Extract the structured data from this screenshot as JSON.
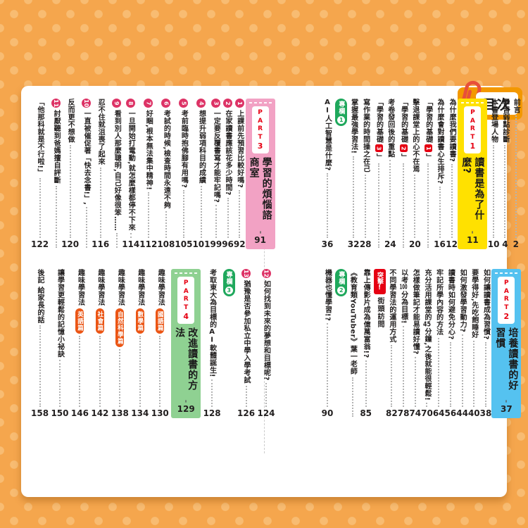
{
  "header": {
    "title": "目次"
  },
  "colors": {
    "background": "#f5a64d",
    "background_dots": "#f8bc72",
    "header_tab": "#f39800",
    "accent_red": "#e60012",
    "badge_green": "#1fa85c",
    "number_circle_pink": "#dd3366",
    "subject_tag_orange": "#eb5514",
    "part1": "#ffe100",
    "part2": "#55c2f0",
    "part3": "#f2a2c4",
    "part4": "#8fd192"
  },
  "sections": {
    "top_right": {
      "columns": [
        {
          "kind": "entry",
          "lines": [
            {
              "text": "前言"
            }
          ],
          "page": "2"
        },
        {
          "kind": "entry",
          "lines": [
            {
              "text": "學習弱點診斷"
            }
          ],
          "page": "4"
        },
        {
          "kind": "entry",
          "lines": [
            {
              "text": "本書登場人物"
            }
          ],
          "page": "10"
        },
        {
          "kind": "part",
          "label": "PART",
          "number": "1",
          "title": "讀書是為了什麼?",
          "page": "11",
          "color": "#ffe100"
        },
        {
          "kind": "entry",
          "lines": [
            {
              "text": "為什麼我們要讀書?"
            }
          ],
          "page": "12"
        },
        {
          "kind": "entry",
          "lines": [
            {
              "text": "為什麼會對讀書心生排斥?"
            }
          ],
          "page": "16"
        },
        {
          "kind": "entry",
          "lines": [
            {
              "bracket": {
                "label": "學習的基礎",
                "num": "1"
              }
            },
            {
              "text": "擊退課堂上的心不在焉"
            }
          ],
          "page": "20"
        },
        {
          "kind": "entry",
          "lines": [
            {
              "bracket": {
                "label": "學習的基礎",
                "num": "2"
              }
            },
            {
              "text": "考卷發回後的重點"
            }
          ],
          "page": "24"
        },
        {
          "kind": "entry",
          "lines": [
            {
              "bracket": {
                "label": "學習的基礎",
                "num": "3"
              }
            },
            {
              "text": "寫作業的時間操之在己"
            }
          ],
          "page": "28"
        },
        {
          "kind": "entry",
          "lines": [
            {
              "text": "掌握最強學習法!"
            }
          ],
          "page": "32"
        },
        {
          "kind": "entry",
          "lines": [
            {
              "badge": {
                "label": "專欄",
                "num": "1"
              }
            },
            {
              "text": "AI人工智慧是什麼?"
            }
          ],
          "page": "36"
        }
      ]
    },
    "top_left": {
      "columns": [
        {
          "kind": "part",
          "label": "PART",
          "number": "3",
          "title": "學習的煩惱諮商室",
          "page": "91",
          "color": "#f2a2c4"
        },
        {
          "kind": "entry",
          "lines": [
            {
              "num": "1",
              "text": "上課前先預習比較好嗎?"
            }
          ],
          "page": "92"
        },
        {
          "kind": "entry",
          "lines": [
            {
              "num": "2",
              "text": "在家讀書應該花多少時間?"
            }
          ],
          "page": "96"
        },
        {
          "kind": "entry",
          "lines": [
            {
              "num": "3",
              "text": "一定要反覆書寫才能牢記嗎?"
            }
          ],
          "page": "99"
        },
        {
          "kind": "entry",
          "lines": [
            {
              "num": "4",
              "text": "想提升弱項科目的成績"
            }
          ],
          "page": "101"
        },
        {
          "kind": "entry",
          "lines": [
            {
              "num": "5",
              "text": "考前臨時抱佛腳有用嗎?"
            }
          ],
          "page": "105"
        },
        {
          "kind": "entry",
          "lines": [
            {
              "num": "6",
              "text": "考試的時候,檢查時間永遠不夠"
            }
          ],
          "page": "108"
        },
        {
          "kind": "entry",
          "lines": [
            {
              "num": "7",
              "text": "好睏,根本無法集中精神!"
            }
          ],
          "page": "112"
        },
        {
          "kind": "entry",
          "lines": [
            {
              "num": "8",
              "text": "一旦開始打電動,就怎麼樣都停不下來"
            }
          ],
          "page": "114"
        },
        {
          "kind": "entry",
          "lines": [
            {
              "num": "9",
              "text": "看到別人那麼聰明,自己好像很笨……"
            },
            {
              "text": "忍不住就沮喪了起來"
            }
          ],
          "page": "116"
        },
        {
          "kind": "entry",
          "lines": [
            {
              "num": "10",
              "text": "一直被催促著「快去念書!」,"
            },
            {
              "text": "反而更不想做"
            }
          ],
          "page": "120"
        },
        {
          "kind": "entry",
          "lines": [
            {
              "num": "11",
              "text": "討厭聽到爸媽擅自評斷"
            },
            {
              "text": "「他那科就是不行啦!」"
            }
          ],
          "page": "122"
        }
      ]
    },
    "bottom_right": {
      "columns": [
        {
          "kind": "part",
          "label": "PART",
          "number": "2",
          "title": "培養讀書的好習慣",
          "page": "37",
          "color": "#55c2f0"
        },
        {
          "kind": "entry",
          "lines": [
            {
              "text": "如何讓讀書成為習慣?"
            }
          ],
          "page": "38"
        },
        {
          "kind": "entry",
          "lines": [
            {
              "text": "要學得好,先吃飽睡好"
            }
          ],
          "page": "40"
        },
        {
          "kind": "entry",
          "lines": [
            {
              "text": "如何激發學習動力?"
            }
          ],
          "page": "44"
        },
        {
          "kind": "entry",
          "lines": [
            {
              "text": "讀書時如何避免分心?"
            }
          ],
          "page": "56"
        },
        {
          "kind": "entry",
          "lines": [
            {
              "text": "牢記所學內容的方法"
            }
          ],
          "page": "64"
        },
        {
          "kind": "entry",
          "lines": [
            {
              "text": "充分活用課堂的45分鐘,之後就能很輕鬆!"
            }
          ],
          "page": "70"
        },
        {
          "kind": "entry",
          "lines": [
            {
              "text": "怎樣做筆記才能易讀好懂?"
            }
          ],
          "page": "74"
        },
        {
          "kind": "entry",
          "lines": [
            {
              "text": "以考100分為目標!"
            }
          ],
          "page": "78"
        },
        {
          "kind": "entry",
          "lines": [
            {
              "text": "不同學習法的運用方式"
            }
          ],
          "page": "82"
        },
        {
          "kind": "entry",
          "lines": [
            {
              "raid": {
                "label": "突擊!",
                "sub": "街頭訪問"
              }
            },
            {
              "text": "靠上傳影片成為億萬富翁!?"
            },
            {
              "text": "《教育類YouTuber》葉一老師"
            }
          ],
          "page": "85",
          "page_line": 1
        },
        {
          "kind": "entry",
          "lines": [
            {
              "badge": {
                "label": "專欄",
                "num": "2"
              }
            },
            {
              "text": "機器也懂學習!?"
            }
          ],
          "page": "90"
        }
      ]
    },
    "bottom_left": {
      "columns": [
        {
          "kind": "entry",
          "lines": [
            {
              "num": "12",
              "text": "如何找到未來的夢想和目標呢?"
            }
          ],
          "page": "124"
        },
        {
          "kind": "entry",
          "lines": [
            {
              "num": "13",
              "text": "猶豫是否參加私立中學入學考試"
            }
          ],
          "page": "126"
        },
        {
          "kind": "entry",
          "lines": [
            {
              "badge": {
                "label": "專欄",
                "num": "3"
              }
            },
            {
              "text": "考取東大為目標的AI軟體誕生!"
            }
          ],
          "page": "128"
        },
        {
          "kind": "part",
          "label": "PART",
          "number": "4",
          "title": "改進讀書的方法",
          "page": "129",
          "color": "#8fd192"
        },
        {
          "kind": "entry",
          "lines": [
            {
              "text": "趣味學習法",
              "tag": "國語篇"
            }
          ],
          "page": "130"
        },
        {
          "kind": "entry",
          "lines": [
            {
              "text": "趣味學習法",
              "tag": "數學篇"
            }
          ],
          "page": "134"
        },
        {
          "kind": "entry",
          "lines": [
            {
              "text": "趣味學習法",
              "tag": "自然科學篇"
            }
          ],
          "page": "138"
        },
        {
          "kind": "entry",
          "lines": [
            {
              "text": "趣味學習法",
              "tag": "社會篇"
            }
          ],
          "page": "142"
        },
        {
          "kind": "entry",
          "lines": [
            {
              "text": "趣味學習法",
              "tag": "英語篇"
            }
          ],
          "page": "146"
        },
        {
          "kind": "entry",
          "lines": [
            {
              "text": "讓學習更輕鬆的記憶小祕訣"
            }
          ],
          "page": "150"
        },
        {
          "kind": "entry",
          "lines": [
            {
              "text": "後記 給家長的話"
            }
          ],
          "page": "158"
        }
      ]
    }
  }
}
